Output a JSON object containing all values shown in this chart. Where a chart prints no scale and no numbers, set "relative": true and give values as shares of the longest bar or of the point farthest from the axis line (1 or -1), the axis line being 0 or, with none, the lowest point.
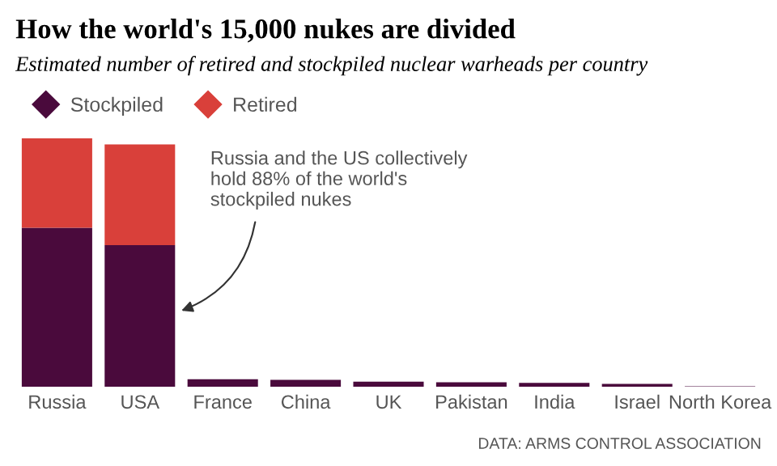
{
  "chart_data": {
    "type": "bar",
    "title": "How the world's 15,000 nukes are divided",
    "subtitle": "Estimated number of retired and stockpiled nuclear warheads per country",
    "categories": [
      "Russia",
      "USA",
      "France",
      "China",
      "UK",
      "Pakistan",
      "India",
      "Israel",
      "North Korea"
    ],
    "series": [
      {
        "name": "Stockpiled",
        "color": "#4a0a3c",
        "values": [
          0.64,
          0.57,
          0.03,
          0.028,
          0.021,
          0.018,
          0.016,
          0.012,
          0.002
        ]
      },
      {
        "name": "Retired",
        "color": "#d9403a",
        "values": [
          0.36,
          0.405,
          0,
          0,
          0,
          0,
          0,
          0,
          0
        ]
      }
    ],
    "stacked": true,
    "relative": true,
    "legend": "top left",
    "marker": "diamond",
    "annotations": [
      "Russia and the US collectively\nhold 88% of the world's\nstockpiled nukes",
      "DATA: ARMS CONTROL ASSOCIATION"
    ]
  }
}
